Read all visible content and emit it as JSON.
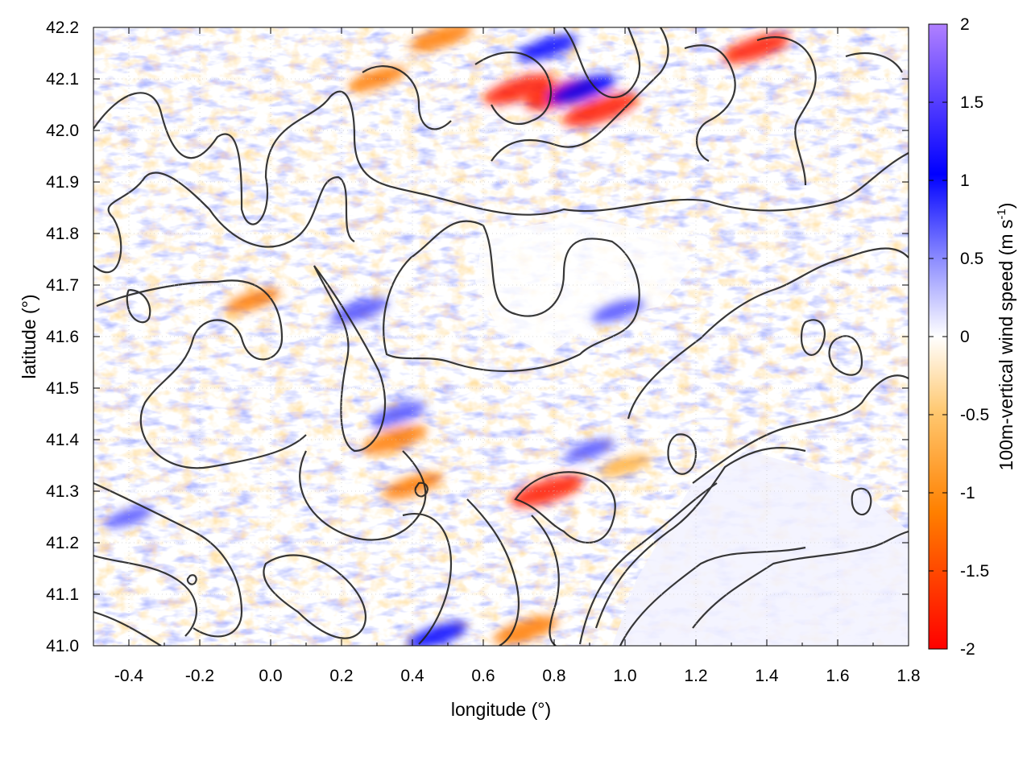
{
  "chart_data": {
    "type": "heatmap",
    "xlabel": "longitude (°)",
    "ylabel": "latitude (°)",
    "xlim": [
      -0.5,
      1.8
    ],
    "ylim": [
      41.0,
      42.2
    ],
    "x_ticks": [
      "-0.4",
      "-0.2",
      "0.0",
      "0.2",
      "0.4",
      "0.6",
      "0.8",
      "1.0",
      "1.2",
      "1.4",
      "1.6",
      "1.8"
    ],
    "x_tick_values": [
      -0.4,
      -0.2,
      0.0,
      0.2,
      0.4,
      0.6,
      0.8,
      1.0,
      1.2,
      1.4,
      1.6,
      1.8
    ],
    "y_ticks": [
      "41.0",
      "41.1",
      "41.2",
      "41.3",
      "41.4",
      "41.5",
      "41.6",
      "41.7",
      "41.8",
      "41.9",
      "42.0",
      "42.1",
      "42.2"
    ],
    "y_tick_values": [
      41.0,
      41.1,
      41.2,
      41.3,
      41.4,
      41.5,
      41.6,
      41.7,
      41.8,
      41.9,
      42.0,
      42.1,
      42.2
    ],
    "grid": true,
    "colorbar": {
      "label": "100m-vertical wind speed (m s",
      "label_sup": "-1",
      "label_close": ")",
      "range": [
        -2,
        2
      ],
      "ticks": [
        "2",
        "1.5",
        "1",
        "0.5",
        "0",
        "-0.5",
        "-1",
        "-1.5",
        "-2"
      ],
      "tick_values": [
        2,
        1.5,
        1,
        0.5,
        0,
        -0.5,
        -1,
        -1.5,
        -2
      ],
      "colors": [
        "#ff0000",
        "#ff8000",
        "#ffbf40",
        "#ffffff",
        "#8080ff",
        "#0000ff",
        "#b080ff"
      ]
    },
    "features": {
      "updraft_hotspots": [
        {
          "lon": 0.82,
          "lat": 42.07,
          "w": -1.8
        },
        {
          "lon": 0.93,
          "lat": 42.04,
          "w": -1.9
        },
        {
          "lon": 0.7,
          "lat": 42.08,
          "w": -1.7
        },
        {
          "lon": 0.78,
          "lat": 41.3,
          "w": -1.8
        },
        {
          "lon": 0.35,
          "lat": 41.4,
          "w": -1.5
        },
        {
          "lon": 0.4,
          "lat": 41.31,
          "w": -1.3
        },
        {
          "lon": 1.37,
          "lat": 42.16,
          "w": -1.6
        },
        {
          "lon": 0.48,
          "lat": 42.18,
          "w": -1.4
        },
        {
          "lon": 0.3,
          "lat": 42.1,
          "w": -1.2
        },
        {
          "lon": -0.05,
          "lat": 41.67,
          "w": -1.1
        },
        {
          "lon": 0.72,
          "lat": 41.03,
          "w": -1.5
        },
        {
          "lon": 1.0,
          "lat": 41.35,
          "w": -1.0
        }
      ],
      "downdraft_hotspots": [
        {
          "lon": 0.88,
          "lat": 42.08,
          "w": 1.6
        },
        {
          "lon": 0.78,
          "lat": 42.16,
          "w": 1.3
        },
        {
          "lon": 0.25,
          "lat": 41.65,
          "w": 1.2
        },
        {
          "lon": 0.36,
          "lat": 41.45,
          "w": 1.1
        },
        {
          "lon": 0.47,
          "lat": 41.02,
          "w": 1.3
        },
        {
          "lon": 0.98,
          "lat": 41.65,
          "w": 1.0
        },
        {
          "lon": 0.9,
          "lat": 41.38,
          "w": 0.9
        },
        {
          "lon": -0.4,
          "lat": 41.25,
          "w": 0.8
        }
      ]
    }
  }
}
